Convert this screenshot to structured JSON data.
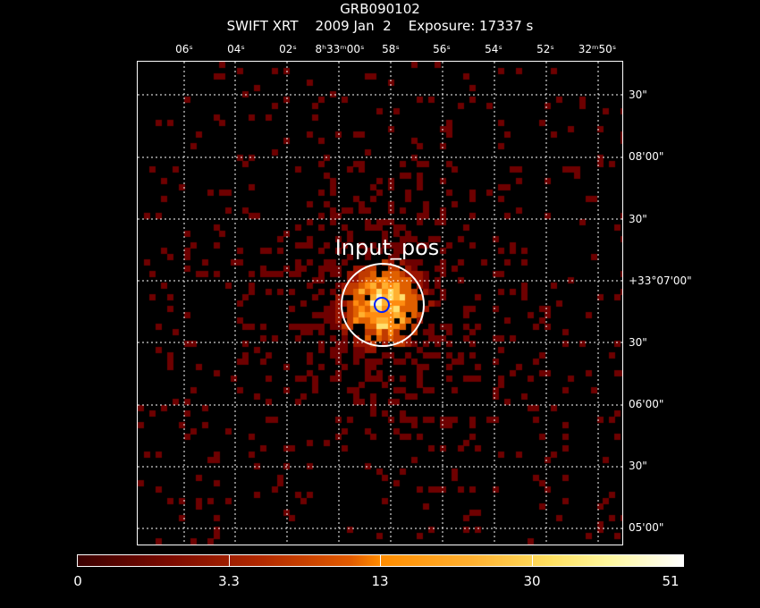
{
  "chart_data": {
    "type": "heatmap",
    "title": "GRB090102",
    "subtitle": "SWIFT XRT    2009 Jan  2    Exposure: 17337 s",
    "x_ticks": [
      "06ˢ",
      "04ˢ",
      "02ˢ",
      "8ʰ33ᵐ00ˢ",
      "58ˢ",
      "56ˢ",
      "54ˢ",
      "52ˢ",
      "32ᵐ50ˢ"
    ],
    "y_ticks": [
      "30\"",
      "08'00\"",
      "30\"",
      "+33°07'00\"",
      "30\"",
      "06'00\"",
      "30\"",
      "05'00\""
    ],
    "region_label": "Input_pos",
    "source_center_fraction": [
      0.5,
      0.5
    ],
    "colorbar": {
      "ticks": [
        "0",
        "3.3",
        "13",
        "30",
        "51"
      ],
      "min": 0,
      "max": 51,
      "colormap": "heat"
    },
    "grid": true
  }
}
